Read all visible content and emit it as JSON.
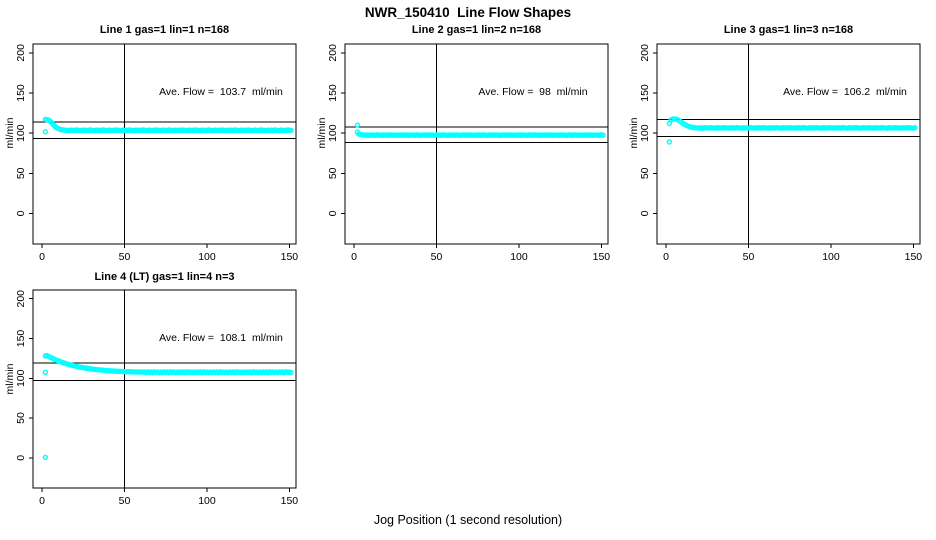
{
  "title": "NWR_150410  Line Flow Shapes",
  "xlabel": "Jog Position (1 second resolution)",
  "colors": {
    "points": "#00ffff",
    "axis": "#000000",
    "background": "#ffffff"
  },
  "chart_data": [
    {
      "type": "scatter",
      "title": "Line 1 gas=1 lin=1 n=168",
      "ylabel": "ml/min",
      "annotation": "Ave. Flow =  103.7  ml/min",
      "ave_flow": 103.7,
      "x_ticks": [
        0,
        50,
        100,
        150
      ],
      "y_ticks": [
        0,
        50,
        100,
        150,
        200
      ],
      "xlim": [
        -5.5,
        154
      ],
      "ylim": [
        -38,
        211
      ],
      "vline_x": 50,
      "hlines": [
        114.1,
        93.3
      ],
      "grid": false,
      "legend": "none",
      "points": {
        "x_start": 2,
        "x_step": 1,
        "y": [
          117.0,
          116.8,
          116.2,
          114.8,
          112.5,
          110.2,
          108.2,
          106.6,
          105.5,
          104.7,
          104.2,
          103.9,
          103.7,
          103.6,
          103.2,
          103.8,
          103.4,
          103.7,
          103.3,
          103.9,
          103.5,
          103.6,
          103.2,
          103.8,
          103.4,
          103.7,
          103.3,
          103.9,
          103.5,
          103.6,
          103.2,
          103.8,
          103.4,
          103.7,
          103.3,
          103.9,
          103.5,
          103.6,
          103.2,
          103.8,
          103.4,
          103.7,
          103.3,
          103.9,
          103.5,
          103.6,
          103.2,
          103.8,
          103.4,
          103.7,
          103.3,
          103.9,
          103.5,
          103.6,
          103.2,
          103.8,
          103.4,
          103.7,
          103.3,
          103.9,
          103.5,
          103.6,
          103.2,
          103.8,
          103.4,
          103.7,
          103.3,
          103.9,
          103.5,
          103.6,
          103.2,
          103.8,
          103.4,
          103.7,
          103.3,
          103.9,
          103.5,
          103.6,
          103.2,
          103.8,
          103.4,
          103.7,
          103.3,
          103.9,
          103.5,
          103.6,
          103.2,
          103.8,
          103.4,
          103.7,
          103.3,
          103.9,
          103.5,
          103.6,
          103.2,
          103.8,
          103.4,
          103.7,
          103.3,
          103.9,
          103.5,
          103.6,
          103.2,
          103.8,
          103.4,
          103.7,
          103.3,
          103.9,
          103.5,
          103.6,
          103.2,
          103.8,
          103.4,
          103.7,
          103.3,
          103.9,
          103.5,
          103.6,
          103.2,
          103.8,
          103.4,
          103.7,
          103.3,
          103.9,
          103.5,
          103.6,
          103.2,
          103.8,
          103.4,
          103.7,
          103.3,
          103.9,
          103.5,
          103.6,
          103.2,
          103.8,
          103.4,
          103.7,
          103.3,
          103.9,
          103.5,
          103.6,
          103.2,
          103.8,
          103.4,
          103.7,
          103.3,
          103.9,
          103.5,
          103.6
        ]
      },
      "outliers": [
        [
          2,
          101.8
        ]
      ]
    },
    {
      "type": "scatter",
      "title": "Line 2 gas=1 lin=2 n=168",
      "ylabel": "ml/min",
      "annotation": "Ave. Flow =  98  ml/min",
      "ave_flow": 98,
      "x_ticks": [
        0,
        50,
        100,
        150
      ],
      "y_ticks": [
        0,
        50,
        100,
        150,
        200
      ],
      "xlim": [
        -5.5,
        154
      ],
      "ylim": [
        -38,
        211
      ],
      "vline_x": 50,
      "hlines": [
        107.8,
        88.2
      ],
      "grid": false,
      "legend": "none",
      "points": {
        "x_start": 2,
        "x_step": 1,
        "y": [
          101.5,
          99.0,
          98.2,
          97.9,
          97.7,
          97.6,
          97.6,
          97.2,
          97.8,
          97.4,
          97.7,
          97.3,
          97.9,
          97.5,
          97.6,
          97.2,
          97.8,
          97.4,
          97.7,
          97.3,
          97.9,
          97.5,
          97.6,
          97.2,
          97.8,
          97.4,
          97.7,
          97.3,
          97.9,
          97.5,
          97.6,
          97.2,
          97.8,
          97.4,
          97.7,
          97.3,
          97.9,
          97.5,
          97.6,
          97.2,
          97.8,
          97.4,
          97.7,
          97.3,
          97.9,
          97.5,
          97.6,
          97.2,
          97.8,
          97.4,
          97.7,
          97.3,
          97.9,
          97.5,
          97.6,
          97.2,
          97.8,
          97.4,
          97.7,
          97.3,
          97.9,
          97.5,
          97.6,
          97.2,
          97.8,
          97.4,
          97.7,
          97.3,
          97.9,
          97.5,
          97.6,
          97.2,
          97.8,
          97.4,
          97.7,
          97.3,
          97.9,
          97.5,
          97.6,
          97.2,
          97.8,
          97.4,
          97.7,
          97.3,
          97.9,
          97.5,
          97.6,
          97.2,
          97.8,
          97.4,
          97.7,
          97.3,
          97.9,
          97.5,
          97.6,
          97.2,
          97.8,
          97.4,
          97.7,
          97.3,
          97.9,
          97.5,
          97.6,
          97.2,
          97.8,
          97.4,
          97.7,
          97.3,
          97.9,
          97.5,
          97.6,
          97.2,
          97.8,
          97.4,
          97.7,
          97.3,
          97.9,
          97.5,
          97.6,
          97.2,
          97.8,
          97.4,
          97.7,
          97.3,
          97.9,
          97.5,
          97.6,
          97.2,
          97.8,
          97.4,
          97.7,
          97.3,
          97.9,
          97.5,
          97.6,
          97.2,
          97.8,
          97.4,
          97.7,
          97.3,
          97.9,
          97.5,
          97.6,
          97.2,
          97.8,
          97.4,
          97.7,
          97.3,
          97.9,
          97.5
        ]
      },
      "outliers": [
        [
          2,
          110.0
        ]
      ]
    },
    {
      "type": "scatter",
      "title": "Line 3 gas=1 lin=3 n=168",
      "ylabel": "ml/min",
      "annotation": "Ave. Flow =  106.2  ml/min",
      "ave_flow": 106.2,
      "x_ticks": [
        0,
        50,
        100,
        150
      ],
      "y_ticks": [
        0,
        50,
        100,
        150,
        200
      ],
      "xlim": [
        -5.5,
        154
      ],
      "ylim": [
        -38,
        211
      ],
      "vline_x": 50,
      "hlines": [
        116.8,
        95.6
      ],
      "grid": false,
      "legend": "none",
      "points": {
        "x_start": 2,
        "x_step": 1,
        "y": [
          112.0,
          116.5,
          117.5,
          117.8,
          117.5,
          116.8,
          115.5,
          114.0,
          112.5,
          111.2,
          110.0,
          109.0,
          108.2,
          107.6,
          107.2,
          106.9,
          106.7,
          106.6,
          106.5,
          106.6,
          106.2,
          106.8,
          106.4,
          106.7,
          106.3,
          106.9,
          106.5,
          106.6,
          106.2,
          106.8,
          106.4,
          106.7,
          106.3,
          106.9,
          106.5,
          106.6,
          106.2,
          106.8,
          106.4,
          106.7,
          106.3,
          106.9,
          106.5,
          106.6,
          106.2,
          106.8,
          106.4,
          106.7,
          106.3,
          106.9,
          106.5,
          106.6,
          106.2,
          106.8,
          106.4,
          106.7,
          106.3,
          106.9,
          106.5,
          106.6,
          106.2,
          106.8,
          106.4,
          106.7,
          106.3,
          106.9,
          106.5,
          106.6,
          106.2,
          106.8,
          106.4,
          106.7,
          106.3,
          106.9,
          106.5,
          106.6,
          106.2,
          106.8,
          106.4,
          106.7,
          106.3,
          106.9,
          106.5,
          106.6,
          106.2,
          106.8,
          106.4,
          106.7,
          106.3,
          106.9,
          106.5,
          106.6,
          106.2,
          106.8,
          106.4,
          106.7,
          106.3,
          106.9,
          106.5,
          106.6,
          106.2,
          106.8,
          106.4,
          106.7,
          106.3,
          106.9,
          106.5,
          106.6,
          106.2,
          106.8,
          106.4,
          106.7,
          106.3,
          106.9,
          106.5,
          106.6,
          106.2,
          106.8,
          106.4,
          106.7,
          106.3,
          106.9,
          106.5,
          106.6,
          106.2,
          106.8,
          106.4,
          106.7,
          106.3,
          106.9,
          106.5,
          106.6,
          106.2,
          106.8,
          106.4,
          106.7,
          106.3,
          106.9,
          106.5,
          106.6,
          106.2,
          106.8,
          106.4,
          106.7,
          106.3,
          106.9,
          106.5,
          106.6,
          106.2,
          106.8
        ]
      },
      "outliers": [
        [
          2,
          89.0
        ]
      ]
    },
    {
      "type": "scatter",
      "title": "Line 4 (LT) gas=1 lin=4 n=3",
      "ylabel": "ml/min",
      "annotation": "Ave. Flow =  108.1  ml/min",
      "ave_flow": 108.1,
      "x_ticks": [
        0,
        50,
        100,
        150
      ],
      "y_ticks": [
        0,
        50,
        100,
        150,
        200
      ],
      "xlim": [
        -5.5,
        154
      ],
      "ylim": [
        -38,
        211
      ],
      "vline_x": 50,
      "hlines": [
        118.9,
        97.3
      ],
      "grid": false,
      "legend": "none",
      "points": {
        "x_start": 2,
        "x_step": 1,
        "y": [
          128.0,
          128.5,
          127.4,
          126.3,
          125.3,
          124.3,
          123.4,
          122.5,
          121.7,
          120.9,
          120.2,
          119.4,
          118.8,
          118.1,
          117.5,
          116.9,
          116.4,
          115.9,
          115.4,
          114.9,
          114.5,
          114.1,
          113.7,
          113.3,
          112.9,
          112.6,
          112.3,
          112.0,
          111.7,
          111.4,
          111.2,
          110.9,
          110.7,
          110.5,
          110.3,
          110.1,
          109.9,
          109.7,
          109.6,
          109.4,
          109.3,
          109.1,
          109.0,
          108.9,
          108.8,
          108.7,
          108.6,
          108.5,
          108.4,
          108.3,
          108.25,
          108.2,
          108.1,
          108.05,
          108.0,
          107.95,
          107.9,
          107.85,
          107.8,
          107.8,
          107.8,
          107.2,
          108.0,
          107.4,
          107.9,
          107.1,
          108.1,
          107.5,
          107.7,
          107.3,
          107.8,
          107.2,
          108.0,
          107.4,
          107.9,
          107.1,
          108.1,
          107.5,
          107.7,
          107.3,
          107.8,
          107.2,
          108.0,
          107.4,
          107.9,
          107.1,
          108.1,
          107.5,
          107.7,
          107.3,
          107.8,
          107.2,
          108.0,
          107.4,
          107.9,
          107.1,
          108.1,
          107.5,
          107.7,
          107.3,
          107.8,
          107.2,
          108.0,
          107.4,
          107.9,
          107.1,
          108.1,
          107.5,
          107.7,
          107.3,
          107.8,
          107.2,
          108.0,
          107.4,
          107.9,
          107.1,
          108.1,
          107.5,
          107.7,
          107.3,
          107.8,
          107.2,
          108.0,
          107.4,
          107.9,
          107.1,
          108.1,
          107.5,
          107.7,
          107.3,
          107.8,
          107.2,
          108.0,
          107.4,
          107.9,
          107.1,
          108.1,
          107.5,
          107.7,
          107.3,
          107.8,
          107.2,
          108.0,
          107.4,
          107.9,
          107.1,
          108.1,
          107.5,
          107.7,
          107.3
        ]
      },
      "outliers": [
        [
          2,
          0.5
        ],
        [
          2,
          107.5
        ]
      ]
    }
  ]
}
